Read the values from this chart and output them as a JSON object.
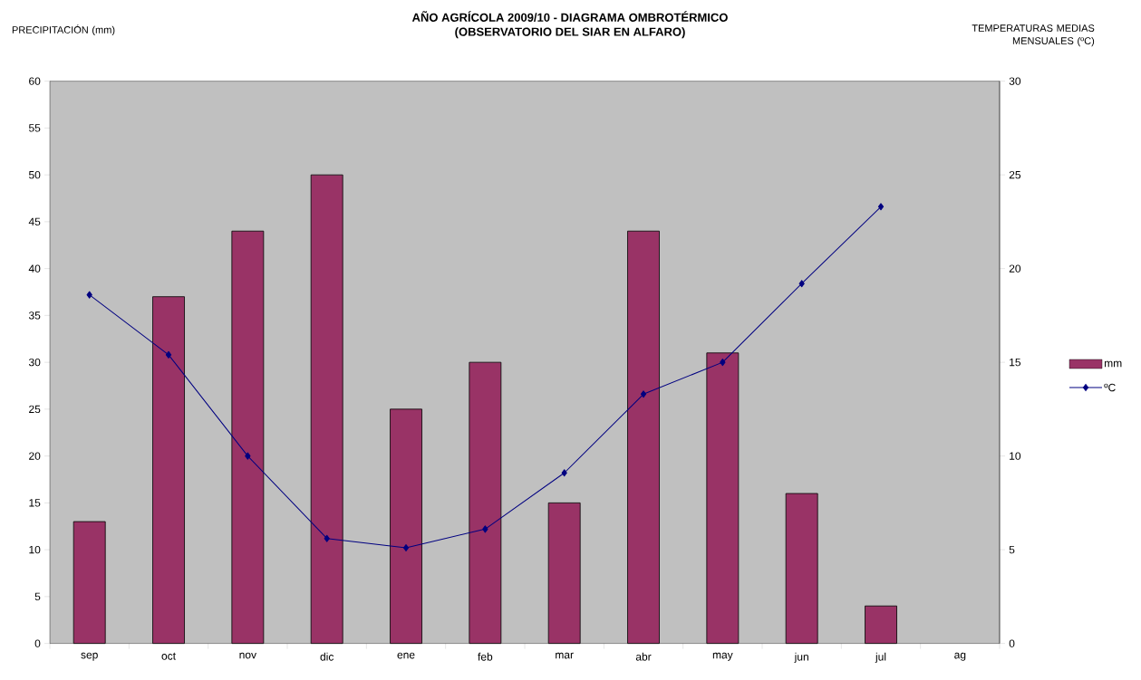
{
  "chart_data": {
    "type": "bar",
    "title": "AÑO AGRÍCOLA 2009/10 - DIAGRAMA OMBROTÉRMICO",
    "subtitle": "(OBSERVATORIO DEL SIAR EN  ALFARO)",
    "ylabel": "PRECIPITACIÓN (mm)",
    "y2label": "TEMPERATURAS MEDIAS MENSUALES  (ºC)",
    "categories": [
      "sep",
      "oct",
      "nov",
      "dic",
      "ene",
      "feb",
      "mar",
      "abr",
      "may",
      "jun",
      "jul",
      "ag"
    ],
    "series": [
      {
        "name": "mm",
        "color": "#993366",
        "values": [
          13,
          37,
          44,
          50,
          25,
          30,
          15,
          44,
          31,
          16,
          4,
          null
        ]
      },
      {
        "name": "ºC",
        "type": "line",
        "axis": "y2",
        "color": "#000080",
        "marker": "diamond",
        "values": [
          18.6,
          15.4,
          10.0,
          5.6,
          5.1,
          6.1,
          9.1,
          13.3,
          15.0,
          19.2,
          23.3,
          null
        ]
      }
    ],
    "ylim": [
      0,
      60
    ],
    "yticks": [
      0,
      5,
      10,
      15,
      20,
      25,
      30,
      35,
      40,
      45,
      50,
      55,
      60
    ],
    "y2lim": [
      0,
      30
    ],
    "y2ticks": [
      0,
      5,
      10,
      15,
      20,
      25,
      30
    ],
    "legend": "right",
    "grid": false
  }
}
